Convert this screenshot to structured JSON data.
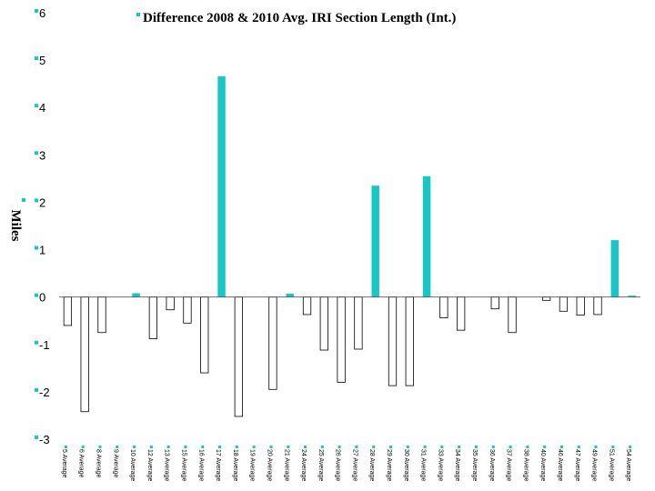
{
  "chart_data": {
    "type": "bar",
    "title": "Difference 2008 & 2010 Avg. IRI Section Length (Int.)",
    "ylabel": "Miles",
    "xlabel": "",
    "ylim": [
      -3,
      6
    ],
    "yticks": [
      6,
      5,
      4,
      3,
      2,
      1,
      0,
      -1,
      -2,
      -3
    ],
    "categories": [
      "5 Average",
      "6 Average",
      "8 Average",
      "9 Average",
      "10 Average",
      "12 Average",
      "13 Average",
      "15 Average",
      "16 Average",
      "17 Average",
      "18 Average",
      "19 Average",
      "20 Average",
      "21 Average",
      "24 Average",
      "25 Average",
      "26 Average",
      "27 Average",
      "28 Average",
      "29 Average",
      "30 Average",
      "31 Average",
      "33 Average",
      "34 Average",
      "35 Average",
      "36 Average",
      "37 Average",
      "38 Average",
      "40 Average",
      "46 Average",
      "47 Average",
      "49 Average",
      "51 Average",
      "54 Average"
    ],
    "values": [
      -0.6,
      -2.42,
      -0.75,
      0,
      0.08,
      -0.88,
      -0.27,
      -0.55,
      -1.6,
      4.66,
      -2.52,
      0,
      -1.95,
      0.07,
      -0.37,
      -1.12,
      -1.8,
      -1.1,
      2.35,
      -1.87,
      -1.87,
      2.55,
      -0.44,
      -0.7,
      0,
      -0.25,
      -0.75,
      0,
      -0.07,
      -0.3,
      -0.38,
      -0.37,
      1.2,
      0.03
    ],
    "colors": {
      "positive": "#18c6c6",
      "negative": "#ffffff",
      "negative_stroke": "#000000",
      "axis": "#000000"
    },
    "legend": "top-center"
  }
}
